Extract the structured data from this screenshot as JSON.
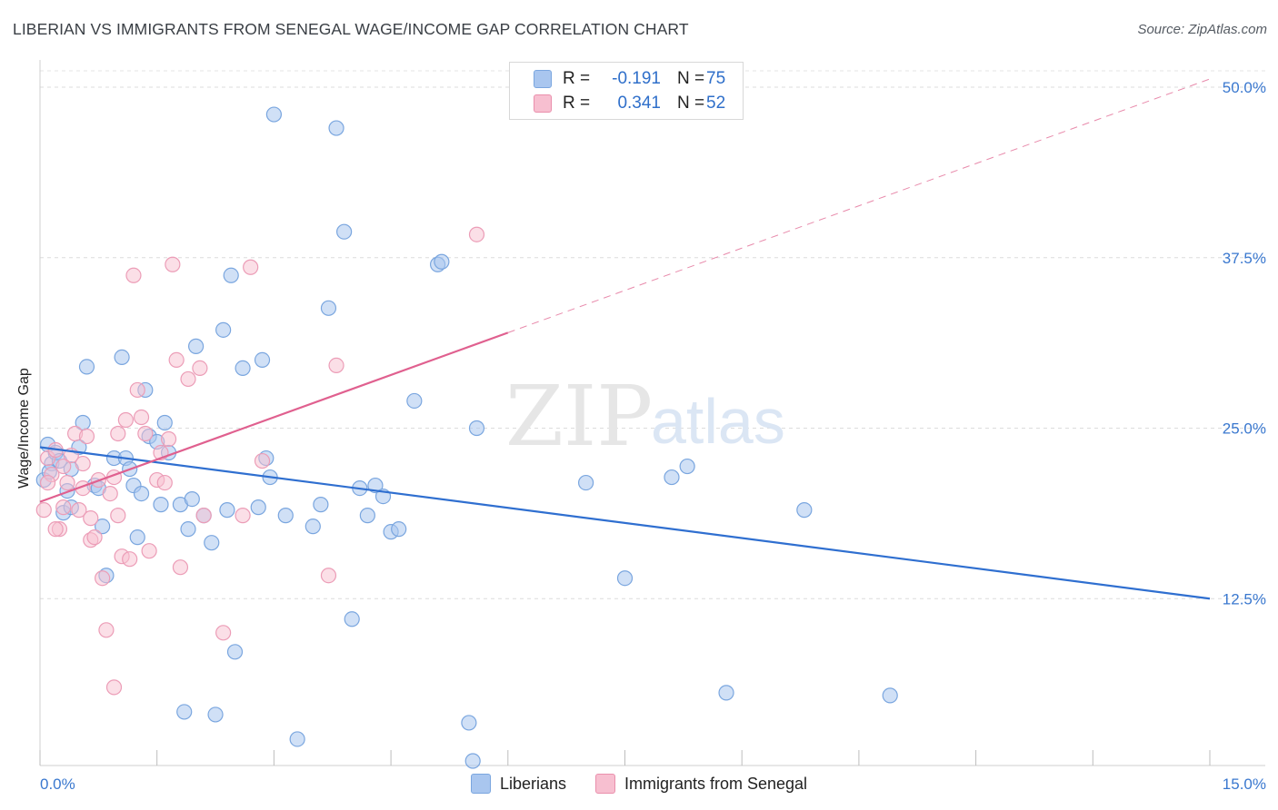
{
  "title": "LIBERIAN VS IMMIGRANTS FROM SENEGAL WAGE/INCOME GAP CORRELATION CHART",
  "source": "Source: ZipAtlas.com",
  "watermark": {
    "zip": "ZIP",
    "atlas": "atlas"
  },
  "legend": {
    "rows": [
      {
        "r_label": "R =",
        "r_value": "-0.191",
        "n_label": "N =",
        "n_value": "75",
        "color": "#a9c6ef",
        "border": "#7aa6df"
      },
      {
        "r_label": "R =",
        "r_value": "0.341",
        "n_label": "N =",
        "n_value": "52",
        "color": "#f7bfd0",
        "border": "#ea8fac"
      }
    ]
  },
  "bottom_legend": [
    {
      "label": "Liberians",
      "color": "#a9c6ef",
      "border": "#7aa6df"
    },
    {
      "label": "Immigrants from Senegal",
      "color": "#f7bfd0",
      "border": "#ea8fac"
    }
  ],
  "chart_data": {
    "type": "scatter",
    "title": "LIBERIAN VS IMMIGRANTS FROM SENEGAL WAGE/INCOME GAP CORRELATION CHART",
    "xlabel": "",
    "ylabel": "Wage/Income Gap",
    "xlim": [
      0,
      15
    ],
    "ylim": [
      0,
      50
    ],
    "x_tick_labels": [
      "0.0%",
      "15.0%"
    ],
    "y_tick_values": [
      12.5,
      25.0,
      37.5,
      50.0
    ],
    "y_tick_labels": [
      "12.5%",
      "25.0%",
      "37.5%",
      "50.0%"
    ],
    "grid": true,
    "legend_position": "top-center",
    "series": [
      {
        "name": "Liberians",
        "color": "#6e9fe0",
        "line_color": "#2f6fd0",
        "trend": {
          "x": [
            0,
            15
          ],
          "y": [
            23.6,
            12.5
          ]
        },
        "points": [
          [
            0.05,
            21.2
          ],
          [
            0.1,
            23.8
          ],
          [
            0.15,
            22.4
          ],
          [
            0.2,
            23.2
          ],
          [
            0.25,
            22.6
          ],
          [
            0.3,
            18.8
          ],
          [
            0.35,
            20.4
          ],
          [
            0.4,
            22.0
          ],
          [
            0.5,
            23.6
          ],
          [
            0.55,
            25.4
          ],
          [
            0.6,
            29.5
          ],
          [
            0.7,
            20.8
          ],
          [
            0.75,
            20.6
          ],
          [
            0.8,
            17.8
          ],
          [
            0.85,
            14.2
          ],
          [
            0.95,
            22.8
          ],
          [
            1.05,
            30.2
          ],
          [
            1.1,
            22.8
          ],
          [
            1.2,
            20.8
          ],
          [
            1.25,
            17.0
          ],
          [
            1.3,
            20.2
          ],
          [
            1.35,
            27.8
          ],
          [
            1.4,
            24.4
          ],
          [
            1.5,
            24.0
          ],
          [
            1.55,
            19.4
          ],
          [
            1.6,
            25.4
          ],
          [
            1.65,
            23.2
          ],
          [
            1.8,
            19.4
          ],
          [
            1.85,
            4.2
          ],
          [
            1.9,
            17.6
          ],
          [
            1.95,
            19.8
          ],
          [
            2.0,
            31.0
          ],
          [
            2.1,
            18.6
          ],
          [
            2.2,
            16.6
          ],
          [
            2.25,
            4.0
          ],
          [
            2.35,
            32.2
          ],
          [
            2.4,
            19.0
          ],
          [
            2.45,
            36.2
          ],
          [
            2.5,
            8.6
          ],
          [
            2.6,
            29.4
          ],
          [
            2.8,
            19.2
          ],
          [
            2.85,
            30.0
          ],
          [
            2.9,
            22.8
          ],
          [
            2.95,
            21.4
          ],
          [
            3.0,
            48.0
          ],
          [
            3.15,
            18.6
          ],
          [
            3.3,
            2.2
          ],
          [
            3.5,
            17.8
          ],
          [
            3.6,
            19.4
          ],
          [
            3.7,
            33.8
          ],
          [
            3.8,
            47.0
          ],
          [
            3.9,
            39.4
          ],
          [
            4.0,
            11.0
          ],
          [
            4.1,
            20.6
          ],
          [
            4.2,
            18.6
          ],
          [
            4.3,
            20.8
          ],
          [
            4.4,
            20.0
          ],
          [
            4.5,
            17.4
          ],
          [
            4.6,
            17.6
          ],
          [
            4.8,
            27.0
          ],
          [
            5.1,
            37.0
          ],
          [
            5.15,
            37.2
          ],
          [
            5.5,
            3.4
          ],
          [
            5.6,
            25.0
          ],
          [
            5.55,
            0.6
          ],
          [
            7.0,
            21.0
          ],
          [
            7.5,
            14.0
          ],
          [
            8.1,
            21.4
          ],
          [
            8.3,
            22.2
          ],
          [
            8.8,
            5.6
          ],
          [
            9.8,
            19.0
          ],
          [
            10.9,
            5.4
          ],
          [
            0.12,
            21.8
          ],
          [
            1.15,
            22.0
          ],
          [
            0.4,
            19.2
          ]
        ]
      },
      {
        "name": "Immigrants from Senegal",
        "color": "#f29bb8",
        "line_color": "#e0608f",
        "trend": {
          "x": [
            0,
            6.0
          ],
          "y": [
            19.6,
            32.0
          ]
        },
        "trend_dashed": {
          "x": [
            6.0,
            15
          ],
          "y": [
            32.0,
            50.6
          ]
        },
        "points": [
          [
            0.05,
            19.0
          ],
          [
            0.1,
            22.8
          ],
          [
            0.15,
            21.6
          ],
          [
            0.2,
            23.4
          ],
          [
            0.25,
            17.6
          ],
          [
            0.3,
            19.2
          ],
          [
            0.35,
            21.0
          ],
          [
            0.4,
            23.0
          ],
          [
            0.45,
            24.6
          ],
          [
            0.5,
            19.0
          ],
          [
            0.55,
            22.4
          ],
          [
            0.6,
            24.4
          ],
          [
            0.65,
            16.8
          ],
          [
            0.7,
            17.0
          ],
          [
            0.75,
            21.2
          ],
          [
            0.8,
            14.0
          ],
          [
            0.85,
            10.2
          ],
          [
            0.9,
            20.2
          ],
          [
            0.95,
            21.4
          ],
          [
            1.0,
            24.6
          ],
          [
            1.05,
            15.6
          ],
          [
            1.1,
            25.6
          ],
          [
            1.15,
            15.4
          ],
          [
            1.2,
            36.2
          ],
          [
            1.25,
            27.8
          ],
          [
            1.3,
            25.8
          ],
          [
            1.35,
            24.6
          ],
          [
            1.4,
            16.0
          ],
          [
            1.5,
            21.2
          ],
          [
            1.55,
            23.2
          ],
          [
            1.6,
            21.0
          ],
          [
            1.65,
            24.2
          ],
          [
            1.7,
            37.0
          ],
          [
            1.75,
            30.0
          ],
          [
            1.8,
            14.8
          ],
          [
            1.9,
            28.6
          ],
          [
            2.05,
            29.4
          ],
          [
            2.1,
            18.6
          ],
          [
            2.35,
            10.0
          ],
          [
            2.6,
            18.6
          ],
          [
            2.7,
            36.8
          ],
          [
            2.85,
            22.6
          ],
          [
            3.7,
            14.2
          ],
          [
            3.8,
            29.6
          ],
          [
            5.6,
            39.2
          ],
          [
            0.95,
            6.0
          ],
          [
            0.55,
            20.6
          ],
          [
            0.2,
            17.6
          ],
          [
            1.0,
            18.6
          ],
          [
            0.65,
            18.4
          ],
          [
            0.1,
            21.0
          ],
          [
            0.3,
            22.2
          ]
        ]
      }
    ]
  }
}
